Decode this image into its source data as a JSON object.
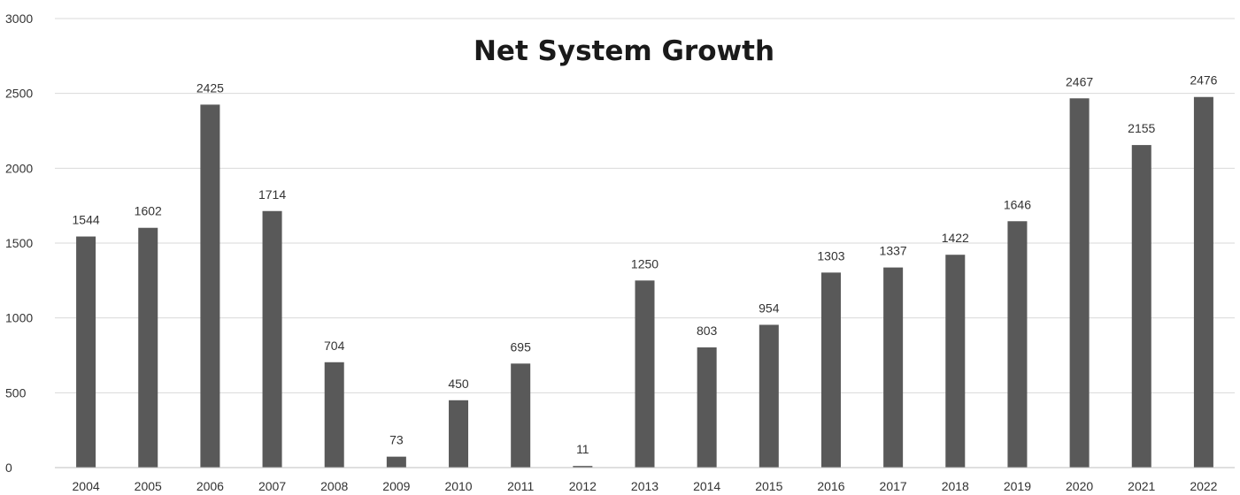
{
  "chart_data": {
    "type": "bar",
    "title": "Net System Growth",
    "xlabel": "",
    "ylabel": "",
    "categories": [
      "2004",
      "2005",
      "2006",
      "2007",
      "2008",
      "2009",
      "2010",
      "2011",
      "2012",
      "2013",
      "2014",
      "2015",
      "2016",
      "2017",
      "2018",
      "2019",
      "2020",
      "2021",
      "2022"
    ],
    "values": [
      1544,
      1602,
      2425,
      1714,
      704,
      73,
      450,
      695,
      11,
      1250,
      803,
      954,
      1303,
      1337,
      1422,
      1646,
      2467,
      2155,
      2476
    ],
    "data_labels": [
      "1544",
      "1602",
      "2425",
      "1714",
      "704",
      "73",
      "450",
      "695",
      "11",
      "1250",
      "803",
      "954",
      "1303",
      "1337",
      "1422",
      "1646",
      "2467",
      "2155",
      "2476"
    ],
    "ylim": [
      0,
      3000
    ],
    "yticks": [
      0,
      500,
      1000,
      1500,
      2000,
      2500,
      3000
    ],
    "ytick_labels": [
      "0",
      "500",
      "1000",
      "1500",
      "2000",
      "2500",
      "3000"
    ],
    "grid": true,
    "legend": "none",
    "bar_color": "#595959"
  }
}
